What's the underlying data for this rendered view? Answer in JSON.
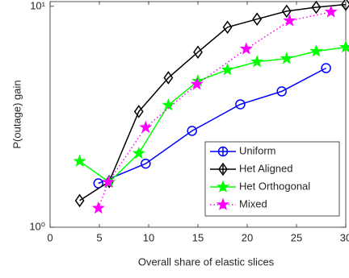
{
  "chart_data": {
    "type": "line",
    "xlabel": "Overall share of elastic slices",
    "ylabel": "P(outage) gain",
    "xlim": [
      0,
      30
    ],
    "xticks": [
      0,
      5,
      10,
      15,
      20,
      25,
      30
    ],
    "ylim": [
      1,
      10.5
    ],
    "yticks": [
      {
        "value": 1,
        "label": "10⁰"
      },
      {
        "value": 10,
        "label": "10¹"
      }
    ],
    "log_y": true,
    "grid": false,
    "legend": "lower right",
    "series": [
      {
        "name": "Uniform",
        "color": "#0000ff",
        "marker": "circle",
        "linestyle": "solid",
        "x": [
          4.9,
          9.7,
          14.4,
          19.3,
          23.5,
          28
        ],
        "values": [
          1.58,
          1.94,
          2.73,
          3.6,
          4.12,
          5.25
        ]
      },
      {
        "name": "Het Aligned",
        "color": "#000000",
        "marker": "diamond",
        "linestyle": "solid",
        "x": [
          3,
          6,
          9,
          12,
          15,
          18,
          21,
          24,
          27,
          30
        ],
        "values": [
          1.32,
          1.61,
          3.34,
          4.75,
          6.2,
          8.04,
          8.75,
          9.5,
          9.9,
          10.2
        ]
      },
      {
        "name": "Het Orthogonal",
        "color": "#00ff00",
        "marker": "star",
        "linestyle": "solid",
        "x": [
          3,
          6,
          9,
          12,
          15,
          18,
          21,
          24,
          27,
          30
        ],
        "values": [
          1.99,
          1.6,
          2.16,
          3.57,
          4.59,
          5.16,
          5.61,
          5.8,
          6.26,
          6.53
        ]
      },
      {
        "name": "Mixed",
        "color": "#ff00ff",
        "marker": "star",
        "linestyle": "dotted",
        "x": [
          4.9,
          5.9,
          9.7,
          14.9,
          19.9,
          24.3,
          28.5
        ],
        "values": [
          1.22,
          1.6,
          2.83,
          4.44,
          6.41,
          8.6,
          9.43
        ]
      }
    ]
  }
}
